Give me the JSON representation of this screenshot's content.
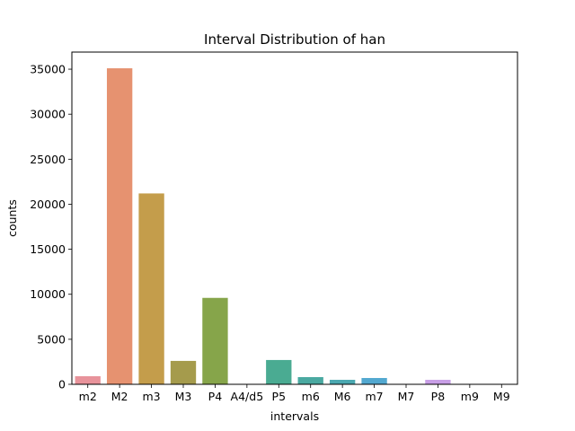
{
  "chart_data": {
    "type": "bar",
    "title": "Interval Distribution of han",
    "xlabel": "intervals",
    "ylabel": "counts",
    "categories": [
      "m2",
      "M2",
      "m3",
      "M3",
      "P4",
      "A4/d5",
      "P5",
      "m6",
      "M6",
      "m7",
      "M7",
      "P8",
      "m9",
      "M9"
    ],
    "values": [
      900,
      35100,
      21200,
      2600,
      9600,
      0,
      2700,
      800,
      500,
      700,
      0,
      500,
      0,
      0
    ],
    "colors": [
      "#e8939b",
      "#e69270",
      "#c49d4b",
      "#a59b4c",
      "#86a54a",
      "#58ac73",
      "#4aab92",
      "#4aa9a1",
      "#4ba8b0",
      "#52a8d0",
      "#9ea9e4",
      "#c89fe6",
      "#e58ed1",
      "#e792b8"
    ],
    "yticks": [
      0,
      5000,
      10000,
      15000,
      20000,
      25000,
      30000,
      35000
    ],
    "ylim": [
      0,
      36900
    ],
    "grid": false,
    "legend": "none"
  }
}
